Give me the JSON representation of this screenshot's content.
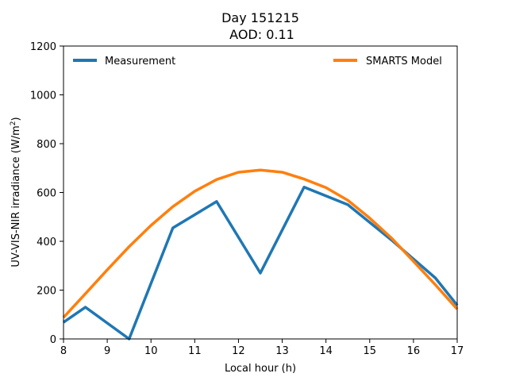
{
  "chart_data": {
    "type": "line",
    "title": "Day 151215",
    "subtitle": "AOD: 0.11",
    "xlabel": "Local hour (h)",
    "ylabel": "UV-VIS-NIR irradiance (W/m",
    "ylabel_sup": "2",
    "ylabel_tail": ")",
    "xlim": [
      8,
      17
    ],
    "ylim": [
      0,
      1200
    ],
    "xticks": [
      8,
      9,
      10,
      11,
      12,
      13,
      14,
      15,
      16,
      17
    ],
    "yticks": [
      0,
      200,
      400,
      600,
      800,
      1000,
      1200
    ],
    "grid": false,
    "legend": "top",
    "series": [
      {
        "name": "Measurement",
        "color": "#1f77b4",
        "x": [
          8,
          8.5,
          9.5,
          10.5,
          11.5,
          12.5,
          13.5,
          14.5,
          15.5,
          16.5,
          17
        ],
        "y": [
          68,
          130,
          0,
          455,
          563,
          270,
          622,
          550,
          405,
          250,
          138
        ]
      },
      {
        "name": "SMARTS Model",
        "color": "#ff7f0e",
        "x": [
          8,
          8.5,
          9,
          9.5,
          10,
          10.5,
          11,
          11.5,
          12,
          12.5,
          13,
          13.5,
          14,
          14.5,
          15,
          15.5,
          16,
          16.5,
          17
        ],
        "y": [
          88,
          185,
          283,
          378,
          465,
          542,
          605,
          653,
          683,
          692,
          683,
          655,
          620,
          568,
          495,
          413,
          318,
          222,
          122
        ]
      }
    ]
  }
}
